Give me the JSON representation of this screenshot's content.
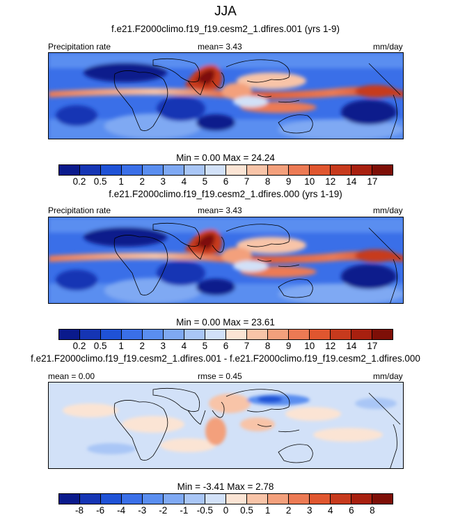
{
  "chart_data": {
    "type": "heatmap",
    "title": "JJA",
    "panels": [
      {
        "case_title": "f.e21.F2000climo.f19_f19.cesm2_1.dfires.001 (yrs 1-9)",
        "left_label": "Precipitation rate",
        "center_label": "mean=   3.43",
        "right_label": "mm/day",
        "minmax": "Min =   0.00 Max =  24.24",
        "min": 0.0,
        "max": 24.24,
        "mean": 3.43,
        "levels": [
          "0.2",
          "0.5",
          "1",
          "2",
          "3",
          "4",
          "5",
          "6",
          "7",
          "8",
          "9",
          "10",
          "12",
          "14",
          "17"
        ]
      },
      {
        "case_title": "f.e21.F2000climo.f19_f19.cesm2_1.dfires.000 (yrs 1-19)",
        "left_label": "Precipitation rate",
        "center_label": "mean=   3.43",
        "right_label": "mm/day",
        "minmax": "Min =   0.00 Max =  23.61",
        "min": 0.0,
        "max": 23.61,
        "mean": 3.43,
        "levels": [
          "0.2",
          "0.5",
          "1",
          "2",
          "3",
          "4",
          "5",
          "6",
          "7",
          "8",
          "9",
          "10",
          "12",
          "14",
          "17"
        ]
      },
      {
        "case_title": "f.e21.F2000climo.f19_f19.cesm2_1.dfires.001 - f.e21.F2000climo.f19_f19.cesm2_1.dfires.000",
        "left_label": "mean =   0.00",
        "center_label": "rmse =   0.45",
        "right_label": "mm/day",
        "minmax": "Min =  -3.41 Max =   2.78",
        "min": -3.41,
        "max": 2.78,
        "mean": 0.0,
        "rmse": 0.45,
        "levels": [
          "-8",
          "-6",
          "-4",
          "-3",
          "-2",
          "-1",
          "-0.5",
          "0",
          "0.5",
          "1",
          "2",
          "3",
          "4",
          "6",
          "8"
        ]
      }
    ]
  },
  "colors": {
    "palette": [
      "#0a1a8c",
      "#1535b4",
      "#1f52d6",
      "#3a6fe8",
      "#5a8ef0",
      "#7fa9f3",
      "#a9c6f6",
      "#d2e1f8",
      "#fbe4d4",
      "#f8c4a8",
      "#f3a07c",
      "#ec7a54",
      "#e0562f",
      "#c73a1d",
      "#a8200f",
      "#7e0f07"
    ]
  }
}
